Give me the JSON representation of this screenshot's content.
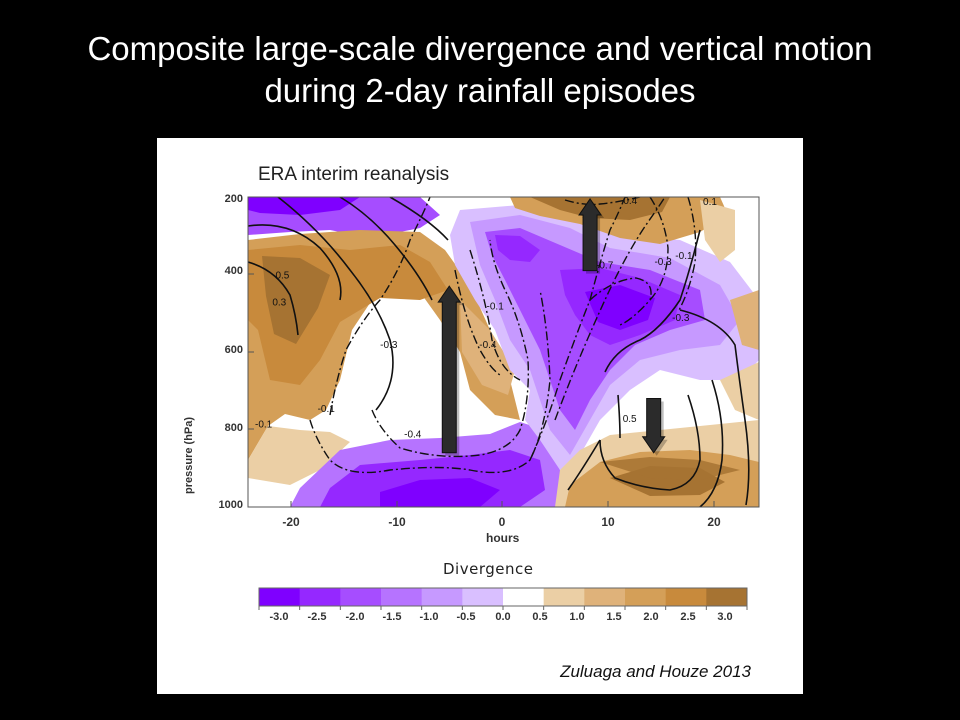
{
  "slide": {
    "title_line1": "Composite large-scale divergence and vertical motion",
    "title_line2": "during 2-day rainfall episodes",
    "credit": "Zuluaga and Houze 2013"
  },
  "chart_data": {
    "type": "heatmap",
    "title": "ERA interim reanalysis",
    "xlabel": "hours",
    "ylabel": "pressure (hPa)",
    "xlim": [
      -25,
      24
    ],
    "ylim": [
      1000,
      200
    ],
    "x_ticks": [
      -20,
      -10,
      0,
      10,
      20
    ],
    "y_ticks": [
      200,
      400,
      600,
      800,
      1000
    ],
    "colorbar": {
      "title": "Divergence",
      "boundaries": [
        -3.0,
        -2.5,
        -2.0,
        -1.5,
        -1.0,
        -0.5,
        0.0,
        0.5,
        1.0,
        1.5,
        2.0,
        2.5,
        3.0
      ],
      "colors": [
        "#7f00ff",
        "#9528ff",
        "#a64dff",
        "#b673ff",
        "#c699ff",
        "#d9bfff",
        "#ffffff",
        "#ebcfa5",
        "#dfb27a",
        "#d49f58",
        "#c88a3c",
        "#a67332"
      ]
    },
    "contour_labels": [
      {
        "text": "0.5",
        "x": -21.7,
        "y": 410
      },
      {
        "text": "0.3",
        "x": -22.0,
        "y": 480
      },
      {
        "text": "-0.1",
        "x": -23.5,
        "y": 795
      },
      {
        "text": "-0.1",
        "x": -17.5,
        "y": 755
      },
      {
        "text": "-0.3",
        "x": -11.5,
        "y": 590
      },
      {
        "text": "-0.4",
        "x": -9.2,
        "y": 820
      },
      {
        "text": "-0.1",
        "x": -1.3,
        "y": 490
      },
      {
        "text": "-0.4",
        "x": -2.0,
        "y": 590
      },
      {
        "text": "-0.4",
        "x": 11.5,
        "y": 218
      },
      {
        "text": "-0.7",
        "x": 9.2,
        "y": 385
      },
      {
        "text": "-0.3",
        "x": 14.8,
        "y": 375
      },
      {
        "text": "-0.1",
        "x": 16.8,
        "y": 360
      },
      {
        "text": "-0.3",
        "x": 16.5,
        "y": 520
      },
      {
        "text": "0.1",
        "x": 19.3,
        "y": 220
      },
      {
        "text": "0.5",
        "x": 11.6,
        "y": 780
      }
    ],
    "vertical_motion_arrows": [
      {
        "direction": "up",
        "x": -5.7,
        "from": 860,
        "to": 430
      },
      {
        "direction": "up",
        "x": 7.8,
        "from": 390,
        "to": 205
      },
      {
        "direction": "down",
        "x": 13.9,
        "from": 720,
        "to": 860
      }
    ]
  }
}
